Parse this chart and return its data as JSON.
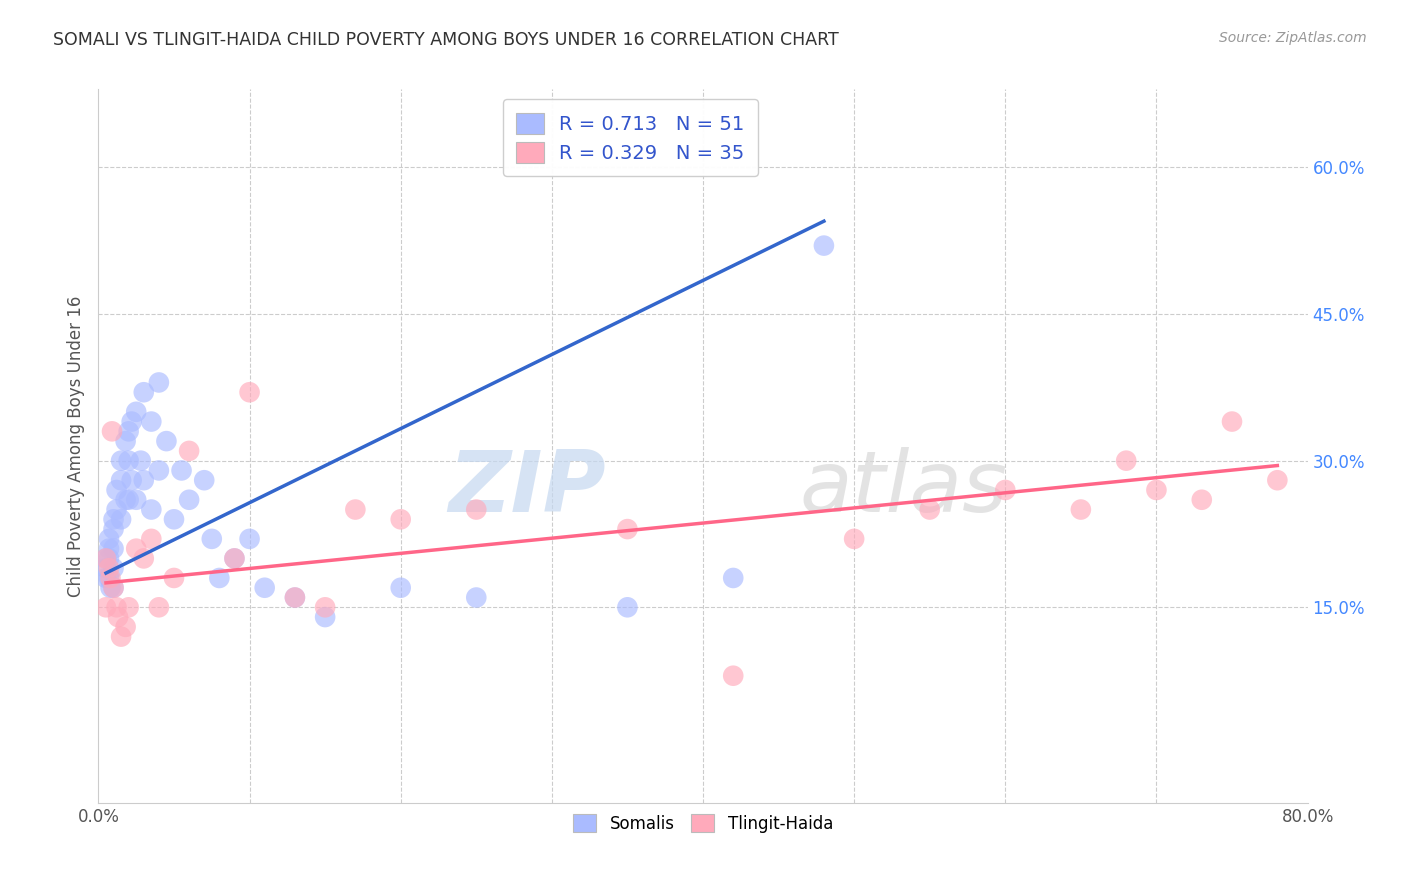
{
  "title": "SOMALI VS TLINGIT-HAIDA CHILD POVERTY AMONG BOYS UNDER 16 CORRELATION CHART",
  "source": "Source: ZipAtlas.com",
  "ylabel": "Child Poverty Among Boys Under 16",
  "xlim": [
    0.0,
    0.8
  ],
  "ylim": [
    -0.05,
    0.68
  ],
  "ytick_positions": [
    0.15,
    0.3,
    0.45,
    0.6
  ],
  "ytick_labels_right": [
    "15.0%",
    "30.0%",
    "45.0%",
    "60.0%"
  ],
  "legend_label1": "R = 0.713   N = 51",
  "legend_label2": "R = 0.329   N = 35",
  "legend_color1": "#aabbff",
  "legend_color2": "#ffaabb",
  "somali_scatter_color": "#aabbff",
  "tlingit_scatter_color": "#ffaabb",
  "somali_line_color": "#3366cc",
  "tlingit_line_color": "#ff6688",
  "watermark_zip": "ZIP",
  "watermark_atlas": "atlas",
  "background_color": "#ffffff",
  "somali_x": [
    0.005,
    0.005,
    0.005,
    0.007,
    0.007,
    0.007,
    0.007,
    0.008,
    0.01,
    0.01,
    0.01,
    0.01,
    0.01,
    0.012,
    0.012,
    0.015,
    0.015,
    0.015,
    0.018,
    0.018,
    0.02,
    0.02,
    0.02,
    0.022,
    0.022,
    0.025,
    0.025,
    0.028,
    0.03,
    0.03,
    0.035,
    0.035,
    0.04,
    0.04,
    0.045,
    0.05,
    0.055,
    0.06,
    0.07,
    0.075,
    0.08,
    0.09,
    0.1,
    0.11,
    0.13,
    0.15,
    0.2,
    0.25,
    0.35,
    0.42,
    0.48
  ],
  "somali_y": [
    0.2,
    0.19,
    0.18,
    0.22,
    0.21,
    0.2,
    0.18,
    0.17,
    0.24,
    0.23,
    0.21,
    0.19,
    0.17,
    0.27,
    0.25,
    0.3,
    0.28,
    0.24,
    0.32,
    0.26,
    0.33,
    0.3,
    0.26,
    0.34,
    0.28,
    0.35,
    0.26,
    0.3,
    0.37,
    0.28,
    0.34,
    0.25,
    0.38,
    0.29,
    0.32,
    0.24,
    0.29,
    0.26,
    0.28,
    0.22,
    0.18,
    0.2,
    0.22,
    0.17,
    0.16,
    0.14,
    0.17,
    0.16,
    0.15,
    0.18,
    0.52
  ],
  "tlingit_x": [
    0.005,
    0.005,
    0.007,
    0.008,
    0.009,
    0.01,
    0.012,
    0.013,
    0.015,
    0.018,
    0.02,
    0.025,
    0.03,
    0.035,
    0.04,
    0.05,
    0.06,
    0.09,
    0.1,
    0.13,
    0.15,
    0.17,
    0.2,
    0.25,
    0.35,
    0.42,
    0.5,
    0.55,
    0.6,
    0.65,
    0.68,
    0.7,
    0.73,
    0.75,
    0.78
  ],
  "tlingit_y": [
    0.2,
    0.15,
    0.19,
    0.18,
    0.33,
    0.17,
    0.15,
    0.14,
    0.12,
    0.13,
    0.15,
    0.21,
    0.2,
    0.22,
    0.15,
    0.18,
    0.31,
    0.2,
    0.37,
    0.16,
    0.15,
    0.25,
    0.24,
    0.25,
    0.23,
    0.08,
    0.22,
    0.25,
    0.27,
    0.25,
    0.3,
    0.27,
    0.26,
    0.34,
    0.28
  ],
  "somali_line_x": [
    0.005,
    0.48
  ],
  "somali_line_y": [
    0.185,
    0.545
  ],
  "tlingit_line_x": [
    0.005,
    0.78
  ],
  "tlingit_line_y": [
    0.175,
    0.295
  ]
}
